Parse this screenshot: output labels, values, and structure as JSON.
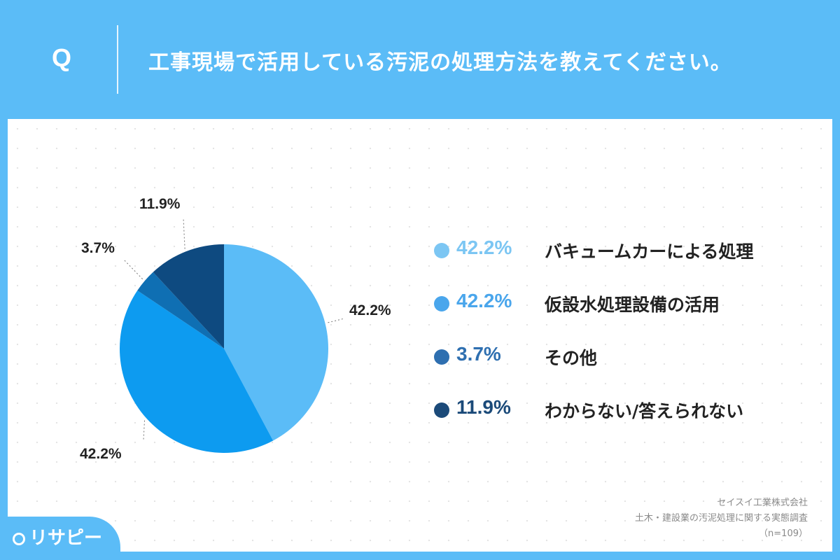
{
  "header": {
    "q_mark": "Q",
    "question": "工事現場で活用している汚泥の処理方法を教えてください。"
  },
  "chart_data": {
    "type": "pie",
    "categories": [
      "バキュームカーによる処理",
      "仮設水処理設備の活用",
      "その他",
      "わからない/答えられない"
    ],
    "values": [
      42.2,
      42.2,
      3.7,
      11.9
    ],
    "value_labels": [
      "42.2%",
      "42.2%",
      "3.7%",
      "11.9%"
    ],
    "colors": [
      "#5bbcf7",
      "#0d9bf0",
      "#0f6fb3",
      "#0e4a80"
    ],
    "legend_colors": [
      "#7cc6f3",
      "#4aa6ec",
      "#2e6fb0",
      "#1b4a79"
    ],
    "start_angle": "12 o'clock, clockwise",
    "legend_position": "right"
  },
  "source": {
    "company": "セイスイ工業株式会社",
    "survey": "土木・建設業の汚泥処理に関する実態調査",
    "n": "（n=109）"
  },
  "logo": {
    "text": "リサピー"
  }
}
